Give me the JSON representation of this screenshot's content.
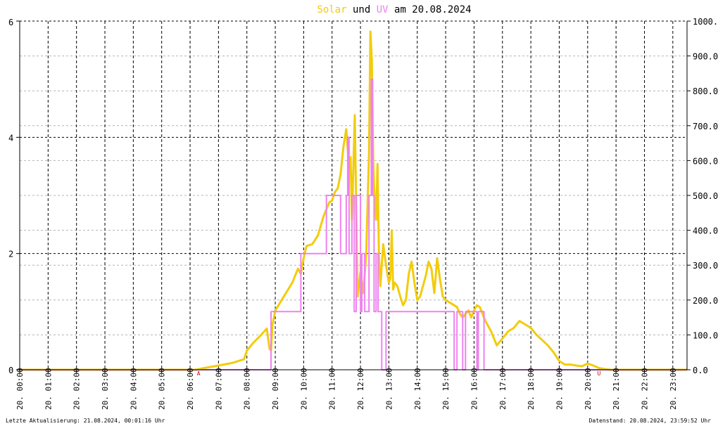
{
  "header": {
    "word_solar": "Solar",
    "word_und": "und",
    "word_uv": "UV",
    "word_rest": "am 20.08.2024"
  },
  "footer": {
    "left": "Letzte Aktualisierung: 21.08.2024, 00:01:16 Uhr",
    "right": "Datenstand: 20.08.2024, 23:59:52 Uhr"
  },
  "colors": {
    "solar": "#f2cc0c",
    "uv": "#ee82ee",
    "grid": "#000000",
    "minor_grid": "#b4b4b4",
    "marker": "#cc0000"
  },
  "chart_data": {
    "type": "line",
    "x_unit": "hour",
    "xlim": [
      0,
      23.5
    ],
    "x_tick_labels": [
      "20. 00:00",
      "20. 01:00",
      "20. 02:00",
      "20. 03:00",
      "20. 04:00",
      "20. 05:00",
      "20. 06:00",
      "20. 07:00",
      "20. 08:00",
      "20. 09:00",
      "20. 10:00",
      "20. 11:00",
      "20. 12:00",
      "20. 13:00",
      "20. 14:00",
      "20. 15:00",
      "20. 16:00",
      "20. 17:00",
      "20. 18:00",
      "20. 19:00",
      "20. 20:00",
      "20. 21:00",
      "20. 22:00",
      "20. 23:00"
    ],
    "y_left": {
      "lim": [
        0,
        6
      ],
      "ticks": [
        "0",
        "2",
        "4",
        "6"
      ]
    },
    "y_right": {
      "lim": [
        0,
        1000
      ],
      "ticks": [
        "0.0",
        "100.0",
        "200.0",
        "300.0",
        "400.0",
        "500.0",
        "600.0",
        "700.0",
        "800.0",
        "900.0",
        "1000.0"
      ]
    },
    "markers": [
      {
        "label": "A",
        "x": 6.3
      },
      {
        "label": "U",
        "x": 20.4
      }
    ],
    "series": [
      {
        "axis": "right",
        "x": [
          0,
          6.2,
          6.5,
          7,
          7.5,
          7.9,
          8,
          8.2,
          8.5,
          8.7,
          8.8,
          8.85,
          8.9,
          9,
          9.3,
          9.6,
          9.8,
          9.9,
          10,
          10.1,
          10.3,
          10.5,
          10.7,
          10.9,
          11,
          11.1,
          11.2,
          11.3,
          11.4,
          11.5,
          11.6,
          11.65,
          11.7,
          11.8,
          11.9,
          12,
          12.1,
          12.2,
          12.3,
          12.35,
          12.4,
          12.45,
          12.5,
          12.55,
          12.6,
          12.65,
          12.7,
          12.8,
          12.9,
          13,
          13.05,
          13.1,
          13.15,
          13.2,
          13.3,
          13.4,
          13.5,
          13.6,
          13.7,
          13.8,
          13.9,
          14,
          14.1,
          14.2,
          14.3,
          14.4,
          14.5,
          14.6,
          14.7,
          14.8,
          14.9,
          15,
          15.2,
          15.4,
          15.5,
          15.6,
          15.7,
          15.8,
          15.9,
          16,
          16.1,
          16.2,
          16.4,
          16.6,
          16.8,
          17,
          17.2,
          17.4,
          17.6,
          17.8,
          18,
          18.2,
          18.4,
          18.6,
          18.8,
          19,
          19.2,
          19.4,
          19.6,
          19.8,
          20,
          20.2,
          20.4,
          20.6,
          20.8,
          21,
          21.5,
          22,
          22.5,
          23,
          23.5
        ],
        "values": [
          0,
          0,
          5,
          12,
          20,
          30,
          55,
          75,
          100,
          118,
          60,
          55,
          128,
          170,
          210,
          250,
          290,
          275,
          320,
          355,
          360,
          385,
          440,
          480,
          485,
          510,
          520,
          560,
          640,
          690,
          580,
          610,
          430,
          730,
          210,
          280,
          220,
          330,
          620,
          970,
          890,
          600,
          480,
          430,
          590,
          330,
          240,
          360,
          300,
          250,
          260,
          400,
          230,
          250,
          240,
          210,
          185,
          200,
          275,
          310,
          250,
          200,
          210,
          240,
          270,
          310,
          290,
          220,
          320,
          260,
          210,
          200,
          190,
          180,
          160,
          150,
          160,
          170,
          150,
          170,
          185,
          180,
          140,
          110,
          70,
          90,
          110,
          120,
          140,
          130,
          120,
          100,
          85,
          70,
          50,
          25,
          15,
          15,
          12,
          10,
          18,
          12,
          5,
          2,
          0,
          0,
          0,
          0,
          0,
          0,
          0
        ]
      },
      {
        "axis": "left",
        "x": [
          0,
          8.85,
          8.85,
          9.9,
          9.9,
          10.8,
          10.8,
          11.3,
          11.3,
          11.5,
          11.5,
          11.55,
          11.55,
          11.6,
          11.6,
          11.7,
          11.7,
          11.78,
          11.78,
          11.85,
          11.85,
          12,
          12,
          12.05,
          12.05,
          12.15,
          12.15,
          12.3,
          12.3,
          12.38,
          12.38,
          12.43,
          12.43,
          12.48,
          12.48,
          12.55,
          12.55,
          12.62,
          12.62,
          12.75,
          12.75,
          12.9,
          12.9,
          12.95,
          12.95,
          15.3,
          15.3,
          15.4,
          15.4,
          15.6,
          15.6,
          15.7,
          15.7,
          16.1,
          16.1,
          16.15,
          16.15,
          16.35,
          16.35,
          23.5
        ],
        "values": [
          0,
          0,
          1,
          1,
          2,
          2,
          3,
          3,
          2,
          2,
          3,
          3,
          4,
          4,
          2,
          2,
          3,
          3,
          1,
          1,
          3,
          3,
          1,
          1,
          2,
          2,
          1,
          1,
          3,
          3,
          5,
          5,
          3,
          3,
          1,
          1,
          2,
          2,
          1,
          1,
          0,
          0,
          1,
          1,
          1,
          1,
          0,
          0,
          1,
          1,
          0,
          0,
          1,
          1,
          0,
          0,
          1,
          1,
          0,
          0
        ]
      }
    ]
  }
}
